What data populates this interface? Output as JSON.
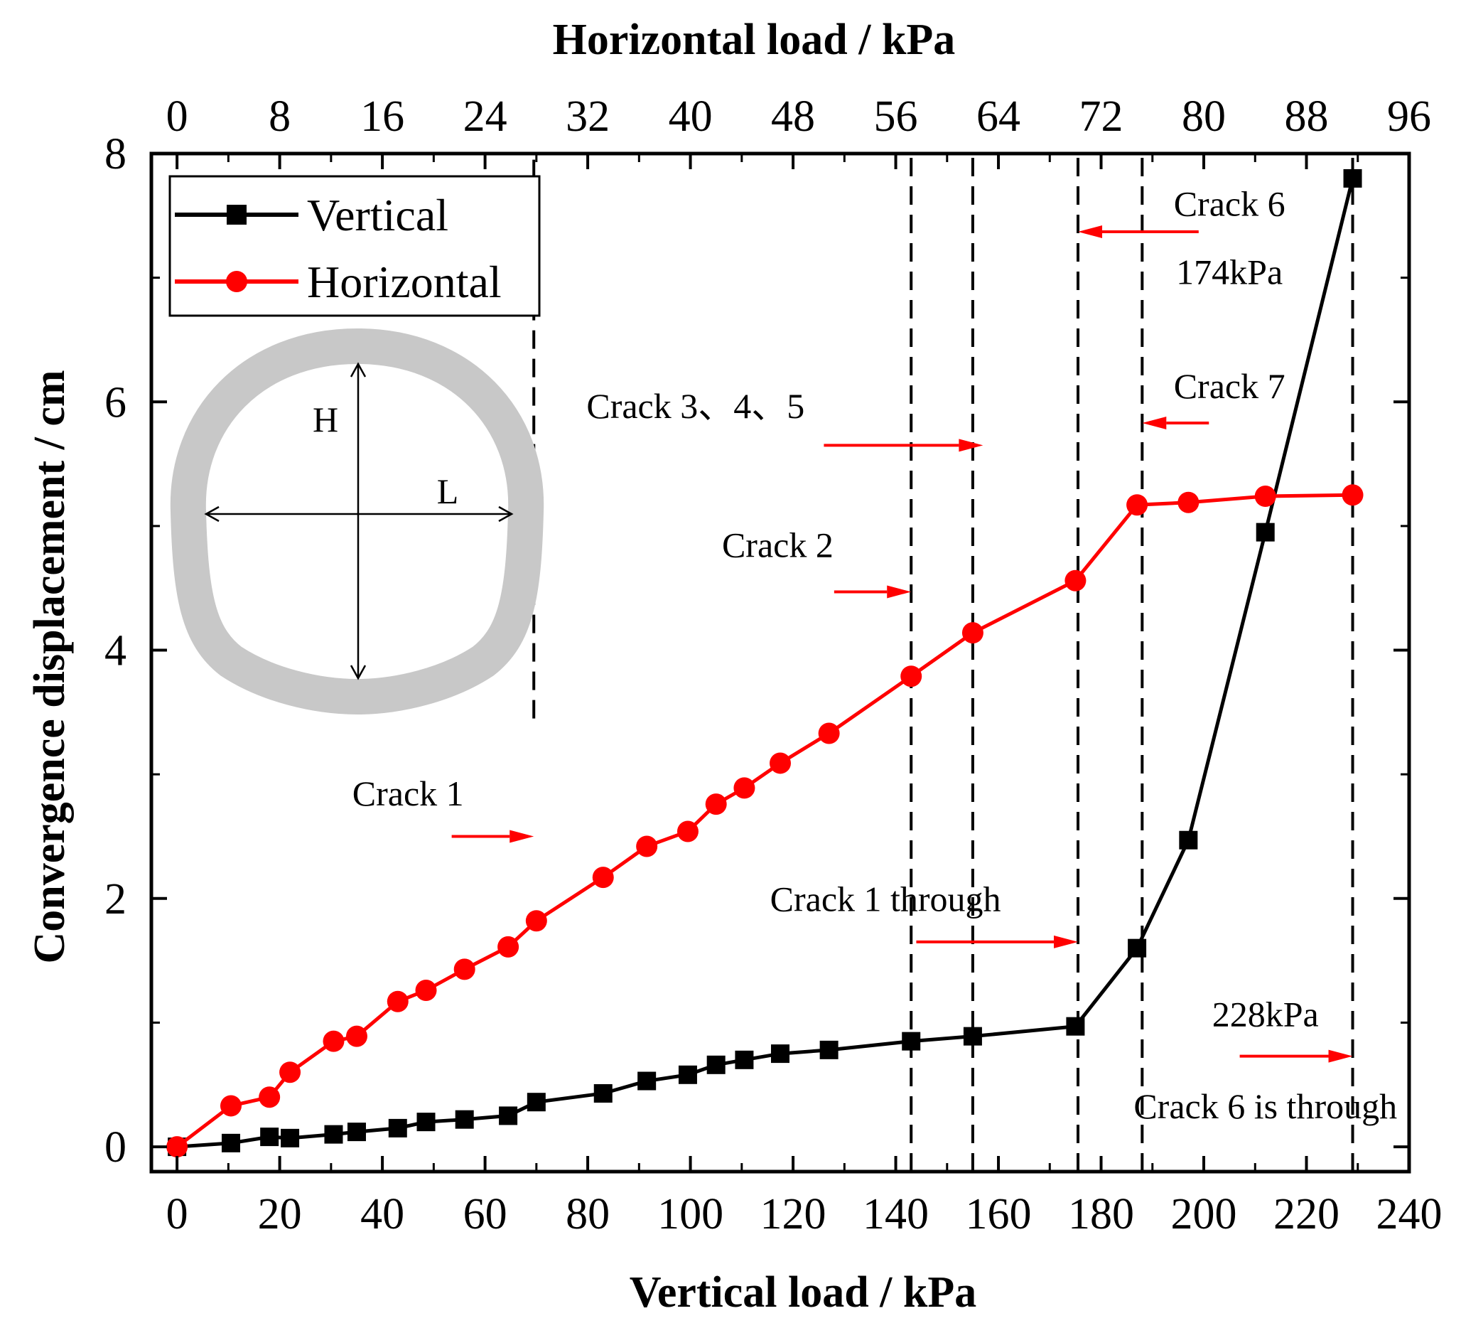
{
  "chart_data": {
    "type": "line",
    "title": "",
    "xlabel": "Vertical load / kPa",
    "x2label": "Horizontal load / kPa",
    "ylabel": "Convergence displacement / cm",
    "xlim": [
      -5,
      240
    ],
    "ylim": [
      -0.2,
      8
    ],
    "x2lim": [
      -2,
      96
    ],
    "xticks": [
      0,
      20,
      40,
      60,
      80,
      100,
      120,
      140,
      160,
      180,
      200,
      220,
      240
    ],
    "x2ticks": [
      0,
      8,
      16,
      24,
      32,
      40,
      48,
      56,
      64,
      72,
      80,
      88,
      96
    ],
    "yticks": [
      0,
      2,
      4,
      6,
      8
    ],
    "legend_position": "top-left",
    "series": [
      {
        "name": "Vertical",
        "color": "#000000",
        "marker": "square",
        "x": [
          0,
          10.5,
          18,
          22,
          30.5,
          35,
          43,
          48.5,
          56,
          64.5,
          70,
          83,
          91.5,
          99.5,
          105,
          110.5,
          117.5,
          127,
          143,
          155,
          175,
          187,
          197,
          212,
          229
        ],
        "y": [
          0,
          0.03,
          0.08,
          0.07,
          0.1,
          0.12,
          0.15,
          0.2,
          0.22,
          0.25,
          0.36,
          0.43,
          0.53,
          0.58,
          0.66,
          0.7,
          0.75,
          0.78,
          0.85,
          0.89,
          0.97,
          1.6,
          2.47,
          4.95,
          7.8
        ]
      },
      {
        "name": "Horizontal",
        "color": "#ff0000",
        "marker": "circle",
        "x": [
          0,
          10.5,
          18,
          22,
          30.5,
          35,
          43,
          48.5,
          56,
          64.5,
          70,
          83,
          91.5,
          99.5,
          105,
          110.5,
          117.5,
          127,
          143,
          155,
          175,
          187,
          197,
          212,
          229
        ],
        "y": [
          0,
          0.33,
          0.4,
          0.6,
          0.85,
          0.89,
          1.17,
          1.26,
          1.43,
          1.61,
          1.82,
          2.17,
          2.42,
          2.54,
          2.76,
          2.89,
          3.09,
          3.33,
          3.79,
          4.14,
          4.56,
          5.17,
          5.19,
          5.24,
          5.25
        ]
      }
    ],
    "vlines": [
      {
        "x": 69.5,
        "y_from": 3.45,
        "y_to": 8
      },
      {
        "x": 143,
        "y_from": -0.2,
        "y_to": 8
      },
      {
        "x": 155,
        "y_from": -0.2,
        "y_to": 8
      },
      {
        "x": 175.5,
        "y_from": -0.2,
        "y_to": 8
      },
      {
        "x": 188,
        "y_from": -0.2,
        "y_to": 8
      },
      {
        "x": 229,
        "y_from": -0.2,
        "y_to": 8
      }
    ],
    "annotations": [
      {
        "text": "Crack 1",
        "x": 45,
        "y": 2.75
      },
      {
        "text": "Crack 2",
        "x": 117,
        "y": 4.75
      },
      {
        "text": "Crack 3、4、5",
        "x": 101,
        "y": 5.87
      },
      {
        "text": "Crack 6",
        "x": 205,
        "y": 7.5
      },
      {
        "text": "174kPa",
        "x": 205,
        "y": 6.95
      },
      {
        "text": "Crack 7",
        "x": 205,
        "y": 6.03
      },
      {
        "text": "Crack 1 through",
        "x": 138,
        "y": 1.9
      },
      {
        "text": "228kPa",
        "x": 212,
        "y": 0.97
      },
      {
        "text": "Crack 6 is through",
        "x": 212,
        "y": 0.23
      }
    ],
    "arrows": [
      {
        "x1": 53.5,
        "x2": 69.5,
        "y": 2.5
      },
      {
        "x1": 128,
        "x2": 143,
        "y": 4.47
      },
      {
        "x1": 126,
        "x2": 157,
        "y": 5.65
      },
      {
        "x1": 144,
        "x2": 175.5,
        "y": 1.65
      },
      {
        "x1": 199,
        "x2": 175.5,
        "y": 7.37
      },
      {
        "x1": 201,
        "x2": 188,
        "y": 5.83
      },
      {
        "x1": 207,
        "x2": 229,
        "y": 0.73
      }
    ],
    "inset": {
      "label_h": "H",
      "label_l": "L"
    }
  }
}
